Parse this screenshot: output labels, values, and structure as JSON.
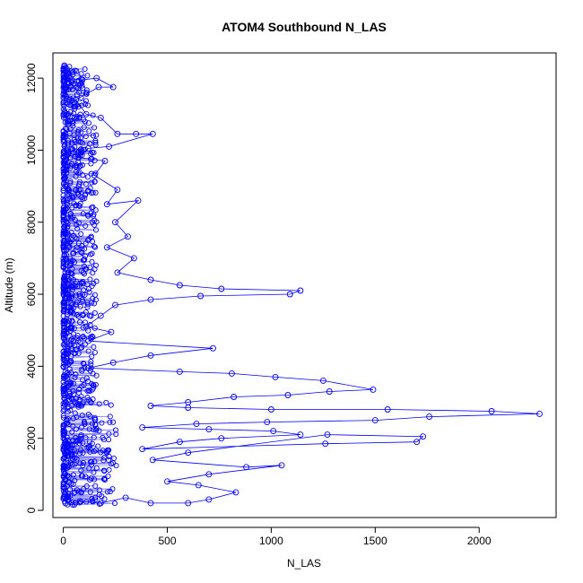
{
  "chart_data": {
    "type": "scatter",
    "title": "ATOM4 Southbound N_LAS",
    "xlabel": "N_LAS",
    "ylabel": "Altitude (m)",
    "xlim": [
      -50,
      2370
    ],
    "ylim": [
      -200,
      12700
    ],
    "x_ticks": [
      0,
      500,
      1000,
      1500,
      2000
    ],
    "y_ticks": [
      0,
      2000,
      4000,
      6000,
      8000,
      10000,
      12000
    ],
    "grid": false,
    "legend": "none",
    "color": "#0000ff",
    "style": "points connected by lines",
    "series": [
      {
        "points": [
          [
            5,
            12350
          ],
          [
            15,
            12000
          ],
          [
            90,
            11950
          ],
          [
            160,
            12000
          ],
          [
            240,
            11750
          ],
          [
            170,
            11750
          ],
          [
            60,
            11400
          ],
          [
            110,
            11000
          ],
          [
            180,
            10900
          ],
          [
            260,
            10450
          ],
          [
            350,
            10450
          ],
          [
            430,
            10450
          ],
          [
            220,
            10100
          ],
          [
            120,
            10050
          ],
          [
            70,
            9800
          ],
          [
            200,
            9700
          ],
          [
            150,
            9300
          ],
          [
            260,
            8900
          ],
          [
            210,
            8500
          ],
          [
            360,
            8600
          ],
          [
            250,
            8000
          ],
          [
            310,
            7600
          ],
          [
            210,
            7300
          ],
          [
            340,
            7000
          ],
          [
            260,
            6600
          ],
          [
            420,
            6400
          ],
          [
            560,
            6250
          ],
          [
            760,
            6150
          ],
          [
            1140,
            6100
          ],
          [
            1090,
            6000
          ],
          [
            660,
            5950
          ],
          [
            420,
            5850
          ],
          [
            250,
            5700
          ],
          [
            180,
            5400
          ],
          [
            110,
            5100
          ],
          [
            230,
            4950
          ],
          [
            120,
            4700
          ],
          [
            720,
            4500
          ],
          [
            420,
            4300
          ],
          [
            240,
            4100
          ],
          [
            120,
            3950
          ],
          [
            560,
            3850
          ],
          [
            810,
            3800
          ],
          [
            1020,
            3700
          ],
          [
            1250,
            3600
          ],
          [
            1490,
            3350
          ],
          [
            1280,
            3300
          ],
          [
            1080,
            3200
          ],
          [
            820,
            3150
          ],
          [
            600,
            3000
          ],
          [
            420,
            2900
          ],
          [
            600,
            2850
          ],
          [
            1000,
            2800
          ],
          [
            1560,
            2800
          ],
          [
            2060,
            2750
          ],
          [
            2290,
            2680
          ],
          [
            1760,
            2600
          ],
          [
            1500,
            2500
          ],
          [
            980,
            2450
          ],
          [
            640,
            2400
          ],
          [
            380,
            2300
          ],
          [
            700,
            2250
          ],
          [
            1010,
            2200
          ],
          [
            1140,
            2100
          ],
          [
            760,
            2000
          ],
          [
            560,
            1900
          ],
          [
            380,
            1700
          ],
          [
            1260,
            1850
          ],
          [
            1700,
            1900
          ],
          [
            1730,
            2050
          ],
          [
            1270,
            2100
          ],
          [
            600,
            1600
          ],
          [
            430,
            1400
          ],
          [
            880,
            1200
          ],
          [
            1050,
            1250
          ],
          [
            700,
            1000
          ],
          [
            500,
            800
          ],
          [
            650,
            700
          ],
          [
            830,
            500
          ],
          [
            700,
            300
          ],
          [
            600,
            200
          ],
          [
            420,
            200
          ],
          [
            300,
            350
          ],
          [
            180,
            200
          ],
          [
            80,
            250
          ],
          [
            20,
            300
          ],
          [
            10,
            200
          ]
        ]
      }
    ]
  }
}
